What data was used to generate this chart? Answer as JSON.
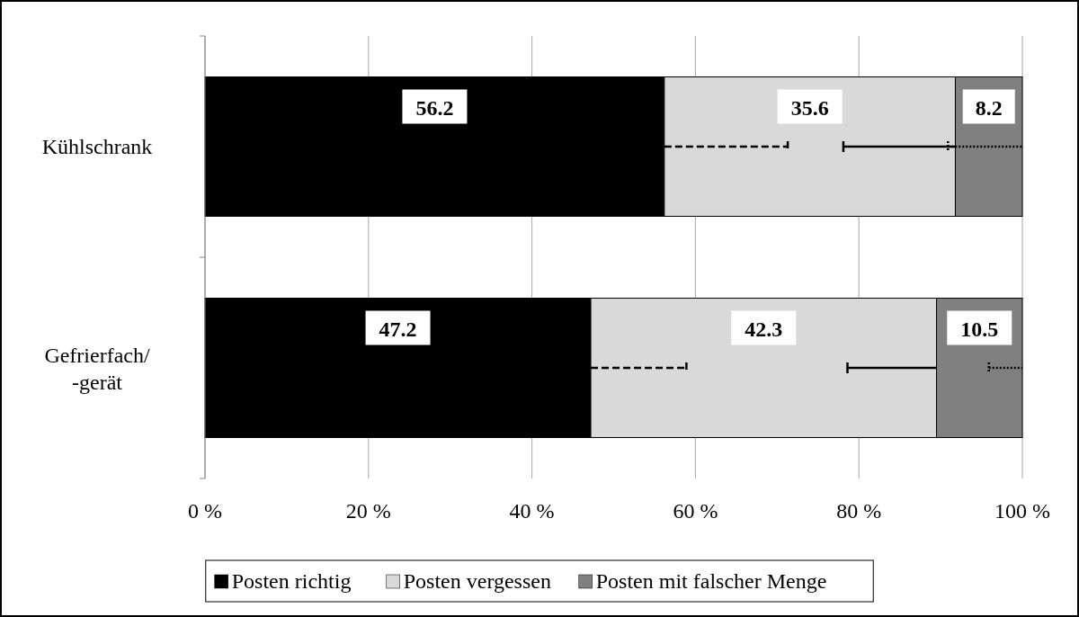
{
  "chart_data": {
    "type": "bar",
    "orientation": "horizontal",
    "stacked": true,
    "categories": [
      "Kühlschrank",
      "Gefrierfach/\n-gerät"
    ],
    "series": [
      {
        "name": "Posten richtig",
        "color": "#000000",
        "values": [
          56.2,
          47.2
        ],
        "errors": [
          [
            56.2,
            71.3
          ],
          [
            47.2,
            58.9
          ]
        ],
        "line_style": "dashed"
      },
      {
        "name": "Posten vergessen",
        "color": "#d9d9d9",
        "values": [
          35.6,
          42.3
        ],
        "errors": [
          [
            78.1,
            91.8
          ],
          [
            78.6,
            89.5
          ]
        ],
        "line_style": "solid"
      },
      {
        "name": "Posten mit falscher Menge",
        "color": "#808080",
        "values": [
          8.2,
          10.5
        ],
        "errors": [
          [
            90.9,
            100
          ],
          [
            95.9,
            100
          ]
        ],
        "line_style": "dotted"
      }
    ],
    "xlim": [
      0,
      100
    ],
    "xticks": [
      {
        "value": 0,
        "label": "0 %"
      },
      {
        "value": 20,
        "label": "20 %"
      },
      {
        "value": 40,
        "label": "40 %"
      },
      {
        "value": 60,
        "label": "60 %"
      },
      {
        "value": 80,
        "label": "80 %"
      },
      {
        "value": 100,
        "label": "100 %"
      }
    ],
    "grid": "x",
    "legend": "bottom",
    "data_labels": true
  }
}
